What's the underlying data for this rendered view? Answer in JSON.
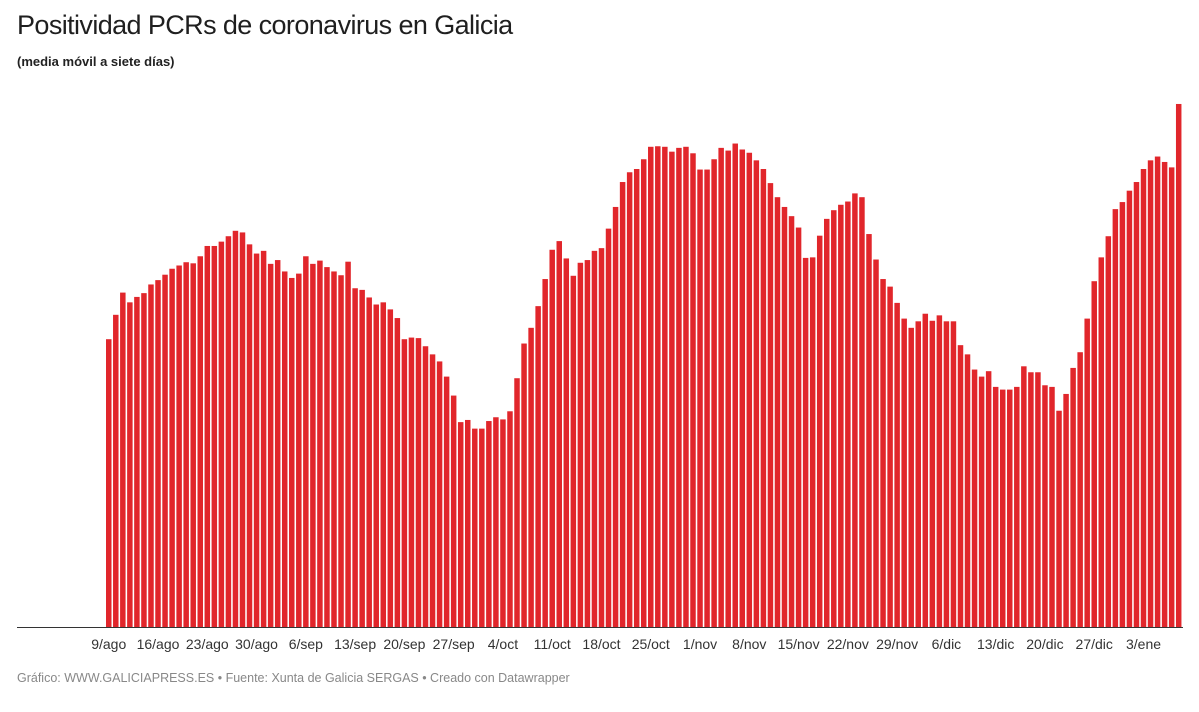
{
  "header": {
    "title": "Positividad PCRs de coronavirus en Galicia",
    "subtitle": "(media móvil a siete días)"
  },
  "footer": {
    "text": "Gráfico: WWW.GALICIAPRESS.ES • Fuente: Xunta de Galicia SERGAS • Creado con Datawrapper"
  },
  "colors": {
    "bar": "#e1262b",
    "baseline": "#333333"
  },
  "chart_data": {
    "type": "bar",
    "title": "Positividad PCRs de coronavirus en Galicia",
    "subtitle": "(media móvil a siete días)",
    "xlabel": "",
    "ylabel": "",
    "grid": false,
    "ylim": [
      0,
      10
    ],
    "x_ticks": [
      "9/ago",
      "16/ago",
      "23/ago",
      "30/ago",
      "6/sep",
      "13/sep",
      "20/sep",
      "27/sep",
      "4/oct",
      "11/oct",
      "18/oct",
      "25/oct",
      "1/nov",
      "8/nov",
      "15/nov",
      "22/nov",
      "29/nov",
      "6/dic",
      "13/dic",
      "20/dic",
      "27/dic",
      "3/ene"
    ],
    "x_tick_indices": [
      0,
      7,
      14,
      21,
      28,
      35,
      42,
      49,
      56,
      63,
      70,
      77,
      84,
      91,
      98,
      105,
      112,
      119,
      126,
      133,
      140,
      147
    ],
    "series": [
      {
        "name": "Positividad PCRs (media móvil 7 días)",
        "values": [
          5.31,
          5.76,
          6.17,
          5.99,
          6.09,
          6.16,
          6.32,
          6.4,
          6.5,
          6.61,
          6.67,
          6.73,
          6.71,
          6.84,
          7.03,
          7.03,
          7.11,
          7.21,
          7.31,
          7.28,
          7.06,
          6.89,
          6.94,
          6.7,
          6.77,
          6.56,
          6.44,
          6.52,
          6.84,
          6.7,
          6.76,
          6.64,
          6.56,
          6.49,
          6.74,
          6.25,
          6.22,
          6.08,
          5.95,
          5.99,
          5.86,
          5.7,
          5.31,
          5.34,
          5.33,
          5.18,
          5.03,
          4.9,
          4.62,
          4.27,
          3.78,
          3.82,
          3.66,
          3.66,
          3.8,
          3.87,
          3.83,
          3.98,
          4.59,
          5.23,
          5.52,
          5.92,
          6.42,
          6.96,
          7.12,
          6.8,
          6.48,
          6.72,
          6.77,
          6.94,
          6.99,
          7.35,
          7.75,
          8.21,
          8.39,
          8.45,
          8.63,
          8.86,
          8.87,
          8.86,
          8.77,
          8.84,
          8.86,
          8.74,
          8.44,
          8.44,
          8.63,
          8.84,
          8.79,
          8.92,
          8.81,
          8.75,
          8.61,
          8.45,
          8.19,
          7.93,
          7.75,
          7.58,
          7.37,
          6.81,
          6.82,
          7.22,
          7.53,
          7.69,
          7.79,
          7.85,
          8.0,
          7.93,
          7.25,
          6.78,
          6.42,
          6.28,
          5.98,
          5.69,
          5.52,
          5.64,
          5.78,
          5.65,
          5.75,
          5.64,
          5.64,
          5.2,
          5.03,
          4.75,
          4.62,
          4.72,
          4.43,
          4.38,
          4.38,
          4.43,
          4.81,
          4.7,
          4.7,
          4.46,
          4.43,
          3.99,
          4.3,
          4.78,
          5.07,
          5.69,
          6.38,
          6.82,
          7.21,
          7.71,
          7.84,
          8.05,
          8.21,
          8.45,
          8.61,
          8.68,
          8.58,
          8.48,
          9.65
        ]
      }
    ]
  }
}
